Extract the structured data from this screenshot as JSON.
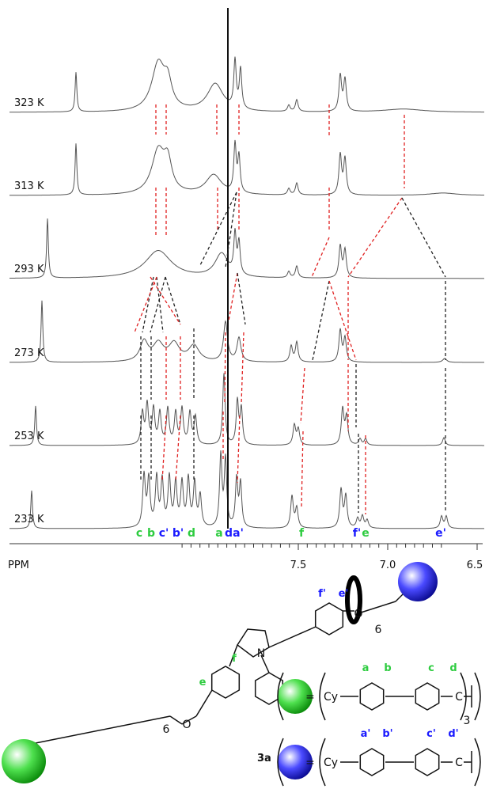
{
  "spectra": {
    "temperatures": [
      "323 K",
      "313 K",
      "293 K",
      "273 K",
      "253 K",
      "233 K"
    ],
    "axis": {
      "label": "PPM",
      "ticks": [
        7.5,
        {
          "value": 7,
          "label": "7.0"
        },
        6.5
      ]
    },
    "peak_labels": [
      "c",
      "b",
      "c'",
      "b'",
      "d",
      "a",
      "d",
      "a'",
      "f",
      "f'",
      "e",
      "e'"
    ]
  },
  "structure": {
    "compound": "3a",
    "ring_labels": [
      "f'",
      "e'",
      "f",
      "e"
    ],
    "atoms": [
      "O",
      "O",
      "N"
    ],
    "chain": [
      "6",
      "6"
    ],
    "legend": [
      {
        "group": "Cy",
        "labels": [
          "a",
          "b",
          "c",
          "d"
        ],
        "end": "C",
        "subscript": "3"
      },
      {
        "group": "Cy",
        "labels": [
          "a'",
          "b'",
          "c'",
          "d'"
        ],
        "end": "C"
      }
    ],
    "equals": "="
  }
}
